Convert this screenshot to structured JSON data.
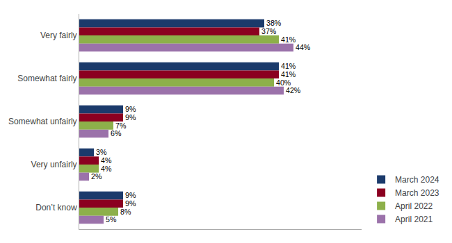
{
  "chart_data": {
    "type": "bar",
    "orientation": "horizontal",
    "categories": [
      "Very fairly",
      "Somewhat fairly",
      "Somewhat unfairly",
      "Very unfairly",
      "Don’t know"
    ],
    "series": [
      {
        "name": "March 2024",
        "color": "#1B3A6B",
        "values": [
          38,
          41,
          9,
          3,
          9
        ],
        "value_labels": [
          "38%",
          "41%",
          "9%",
          "3%",
          "9%"
        ]
      },
      {
        "name": "March 2023",
        "color": "#8B0020",
        "values": [
          37,
          41,
          9,
          4,
          9
        ],
        "value_labels": [
          "37%",
          "41%",
          "9%",
          "4%",
          "9%"
        ]
      },
      {
        "name": "April 2022",
        "color": "#8DB04A",
        "values": [
          41,
          40,
          7,
          4,
          8
        ],
        "value_labels": [
          "41%",
          "40%",
          "7%",
          "4%",
          "8%"
        ]
      },
      {
        "name": "April 2021",
        "color": "#9B72AA",
        "values": [
          44,
          42,
          6,
          2,
          5
        ],
        "value_labels": [
          "44%",
          "42%",
          "6%",
          "2%",
          "5%"
        ]
      }
    ],
    "xlim": [
      0,
      58
    ],
    "data_labels": true,
    "tick_labels": "y",
    "grid": false,
    "legend": "lower right"
  }
}
